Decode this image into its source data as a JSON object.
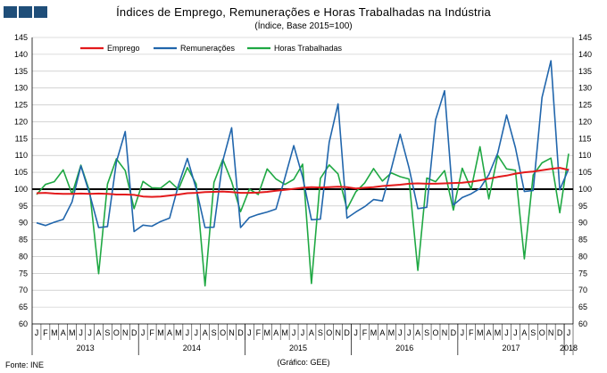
{
  "header": {
    "title": "Índices de Emprego, Remunerações e Horas Trabalhadas na Indústria",
    "subtitle": "(Índice, Base 2015=100)"
  },
  "footer": {
    "source": "Fonte: INE",
    "credit": "(Gráfico: GEE)"
  },
  "colors": {
    "logo": "#1f4e79",
    "emprego": "#e31a1c",
    "remuneracoes": "#2166ac",
    "horas": "#1fa843",
    "baseline": "#000000",
    "grid": "#bbbbbb"
  },
  "chart_data": {
    "type": "line",
    "title": "Índices de Emprego, Remunerações e Horas Trabalhadas na Indústria",
    "subtitle": "(Índice, Base 2015=100)",
    "ylim": [
      60,
      145
    ],
    "yticks": [
      60,
      65,
      70,
      75,
      80,
      85,
      90,
      95,
      100,
      105,
      110,
      115,
      120,
      125,
      130,
      135,
      140,
      145
    ],
    "baseline": 100,
    "grid": true,
    "legend_position": "top-left",
    "x_month_labels": [
      "J",
      "F",
      "M",
      "A",
      "M",
      "J",
      "J",
      "A",
      "S",
      "O",
      "N",
      "D",
      "J",
      "F",
      "M",
      "A",
      "M",
      "J",
      "J",
      "A",
      "S",
      "O",
      "N",
      "D",
      "J",
      "F",
      "M",
      "A",
      "M",
      "J",
      "J",
      "A",
      "S",
      "O",
      "N",
      "D",
      "J",
      "F",
      "M",
      "A",
      "M",
      "J",
      "J",
      "A",
      "S",
      "O",
      "N",
      "D",
      "J",
      "F",
      "M",
      "A",
      "M",
      "J",
      "J",
      "A",
      "S",
      "O",
      "N",
      "D",
      "J"
    ],
    "years": [
      {
        "label": "2013",
        "start": 0,
        "count": 12
      },
      {
        "label": "2014",
        "start": 12,
        "count": 12
      },
      {
        "label": "2015",
        "start": 24,
        "count": 12
      },
      {
        "label": "2016",
        "start": 36,
        "count": 12
      },
      {
        "label": "2017",
        "start": 48,
        "count": 12
      },
      {
        "label": "2018",
        "start": 60,
        "count": 1
      }
    ],
    "series": [
      {
        "name": "Emprego",
        "key": "emprego",
        "values": [
          98.8,
          98.9,
          98.7,
          98.6,
          98.6,
          98.7,
          98.6,
          98.7,
          98.6,
          98.4,
          98.4,
          98.3,
          97.8,
          97.7,
          97.8,
          98.1,
          98.4,
          98.8,
          98.9,
          99.1,
          99.2,
          99.3,
          99.1,
          98.9,
          98.9,
          99.0,
          99.2,
          99.5,
          99.8,
          100.1,
          100.4,
          100.6,
          100.5,
          100.6,
          100.7,
          100.6,
          100.2,
          100.4,
          100.6,
          100.9,
          101.1,
          101.3,
          101.6,
          101.7,
          101.6,
          101.6,
          101.7,
          101.8,
          101.9,
          102.2,
          102.6,
          103.1,
          103.6,
          104.0,
          104.6,
          105.0,
          105.2,
          105.6,
          106.0,
          106.3,
          105.7
        ]
      },
      {
        "name": "Remunerações",
        "key": "remuneracoes",
        "values": [
          90.0,
          89.2,
          90.2,
          91.0,
          96.2,
          106.9,
          98.4,
          88.6,
          88.9,
          108.1,
          117.1,
          87.4,
          89.3,
          89.0,
          90.4,
          91.4,
          101.2,
          109.1,
          100.1,
          88.6,
          88.7,
          108.4,
          118.2,
          88.6,
          91.6,
          92.5,
          93.2,
          94.1,
          103.3,
          112.9,
          103.6,
          90.9,
          91.1,
          113.9,
          125.3,
          91.4,
          93.2,
          94.8,
          96.9,
          96.5,
          106.0,
          116.3,
          106.3,
          94.2,
          94.6,
          120.6,
          129.2,
          95.3,
          97.5,
          98.6,
          100.2,
          104.3,
          110.7,
          122.0,
          112.3,
          99.3,
          99.6,
          127.2,
          138.1,
          99.8,
          106.0
        ]
      },
      {
        "name": "Horas Trabalhadas",
        "key": "horas",
        "values": [
          98.4,
          101.4,
          102.2,
          105.7,
          98.5,
          107.1,
          99.1,
          74.9,
          101.5,
          109.0,
          105.5,
          94.2,
          102.3,
          100.4,
          100.3,
          102.4,
          99.9,
          106.4,
          101.5,
          71.3,
          102.0,
          108.8,
          102.2,
          93.3,
          100.0,
          98.4,
          106.0,
          103.0,
          101.4,
          102.9,
          107.4,
          72.0,
          103.2,
          107.2,
          104.5,
          94.1,
          99.2,
          101.8,
          106.1,
          102.4,
          104.8,
          103.7,
          103.0,
          75.9,
          103.3,
          102.2,
          105.5,
          93.8,
          106.2,
          100.0,
          112.6,
          97.1,
          110.0,
          106.0,
          105.6,
          79.3,
          104.2,
          107.8,
          109.2,
          93.0,
          110.5
        ]
      }
    ]
  }
}
